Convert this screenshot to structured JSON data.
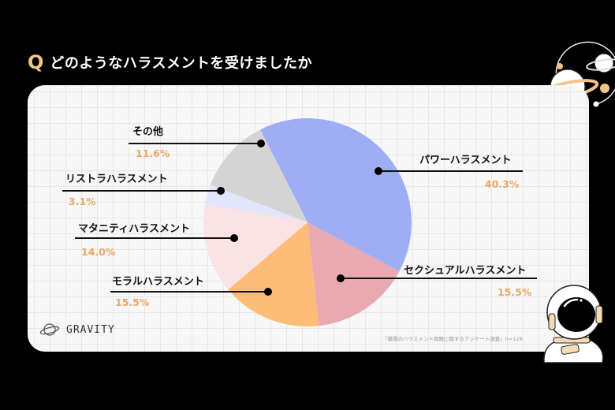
{
  "header": {
    "q_badge": "Q",
    "title": "どのようなハラスメントを受けましたか"
  },
  "brand": {
    "name": "GRAVITY",
    "icon": "planet-icon"
  },
  "source_note": "「職場のハラスメント問題に関するアンケート調査」n=129",
  "chart_data": {
    "type": "pie",
    "title": "どのようなハラスメントを受けましたか",
    "n": 129,
    "labels": [
      "パワーハラスメント",
      "セクシュアルハラスメント",
      "モラルハラスメント",
      "マタニティハラスメント",
      "リストラハラスメント",
      "その他"
    ],
    "values": [
      40.3,
      15.5,
      15.5,
      14.0,
      3.1,
      11.6
    ],
    "value_labels": [
      "40.3%",
      "15.5%",
      "15.5%",
      "14.0%",
      "3.1%",
      "11.6%"
    ],
    "colors": [
      "#9eaef5",
      "#e9a9b1",
      "#fdbc78",
      "#fbe2e4",
      "#e2e5fb",
      "#d4d4d4"
    ],
    "start_angle_deg": -27,
    "direction": "clockwise",
    "legend": "leader-lines"
  },
  "colors": {
    "background": "#000000",
    "card": "#f7f7f7",
    "accent": "#f3c387",
    "percent_text": "#e7a965"
  }
}
